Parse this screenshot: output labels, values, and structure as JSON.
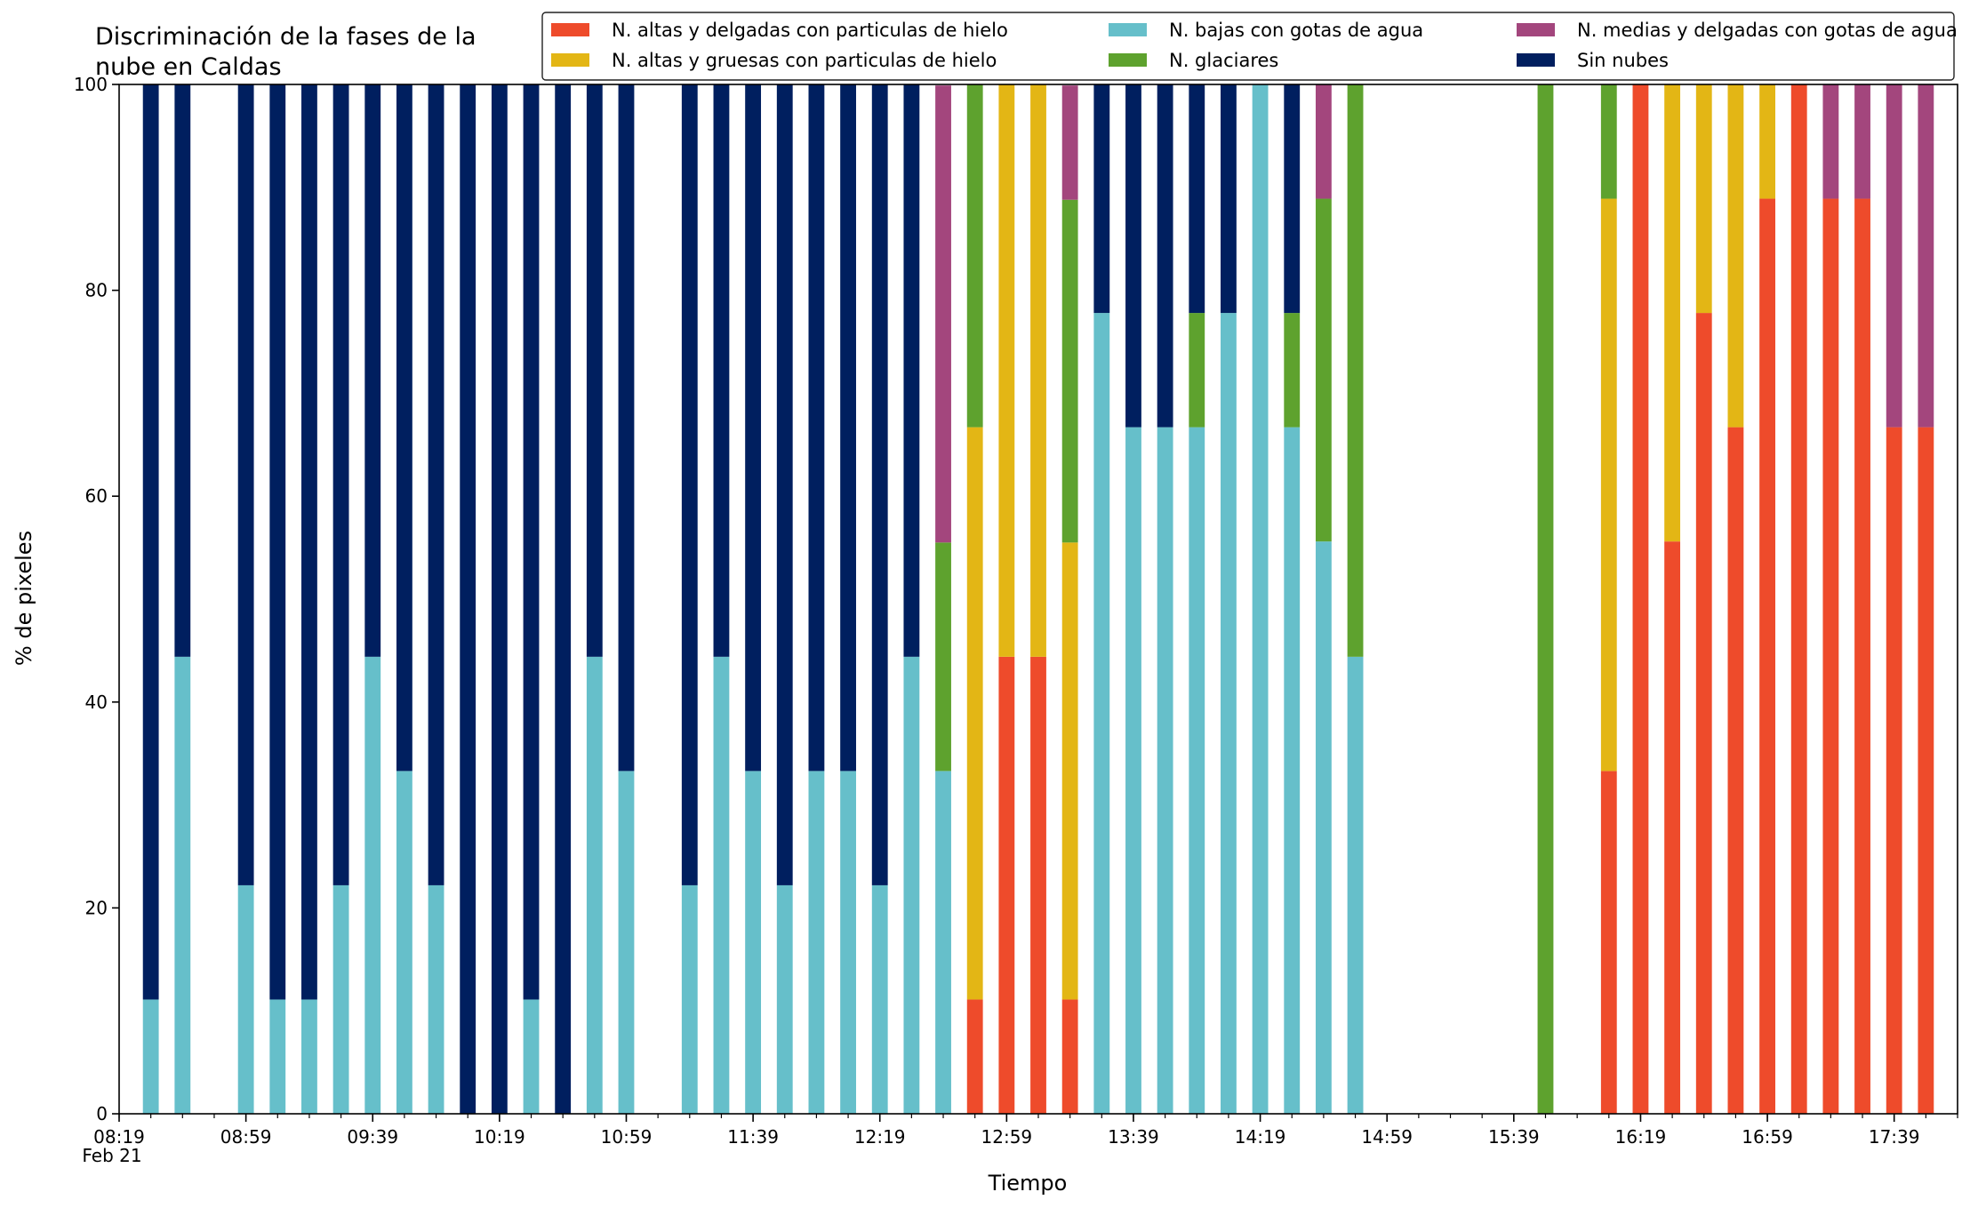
{
  "title_lines": [
    "Discriminación de la fases de la",
    "nube en Caldas"
  ],
  "chart_data": {
    "type": "bar",
    "stacked": true,
    "xlabel": "Tiempo",
    "ylabel": "% de pixeles",
    "ylim": [
      0,
      100
    ],
    "yticks": [
      0,
      20,
      40,
      60,
      80,
      100
    ],
    "x_range": [
      "08:19",
      "17:59"
    ],
    "x_step_minutes": 10,
    "xticks": [
      "08:19",
      "08:59",
      "09:39",
      "10:19",
      "10:59",
      "11:39",
      "12:19",
      "12:59",
      "13:39",
      "14:19",
      "14:59",
      "15:39",
      "16:19",
      "16:59",
      "17:39"
    ],
    "x_date_label": "Feb 21",
    "grid": false,
    "legend": {
      "placement": "top-right",
      "columns": 3
    },
    "legend_order": [
      "N. altas y delgadas con particulas de hielo",
      "N. altas y gruesas con particulas de hielo",
      "N. bajas con gotas de agua",
      "N. glaciares",
      "N. medias y delgadas con gotas de agua",
      "Sin nubes"
    ],
    "stack_order": [
      "N. altas y delgadas con particulas de hielo",
      "N. altas y gruesas con particulas de hielo",
      "N. bajas con gotas de agua",
      "N. glaciares",
      "N. medias y delgadas con gotas de agua",
      "Sin nubes"
    ],
    "series_colors": {
      "N. altas y delgadas con particulas de hielo": "#ee4b2b",
      "N. altas y gruesas con particulas de hielo": "#e3b615",
      "N. bajas con gotas de agua": "#66bfca",
      "N. glaciares": "#5ea22e",
      "N. medias y delgadas con gotas de agua": "#a3467d",
      "Sin nubes": "#001f5f"
    },
    "bars": [
      {
        "time": "08:29",
        "values": [
          0,
          0,
          11.1,
          0,
          0,
          88.9
        ]
      },
      {
        "time": "08:39",
        "values": [
          0,
          0,
          44.4,
          0,
          0,
          55.6
        ]
      },
      {
        "time": "08:59",
        "values": [
          0,
          0,
          22.2,
          0,
          0,
          77.8
        ]
      },
      {
        "time": "09:09",
        "values": [
          0,
          0,
          11.1,
          0,
          0,
          88.9
        ]
      },
      {
        "time": "09:19",
        "values": [
          0,
          0,
          11.1,
          0,
          0,
          88.9
        ]
      },
      {
        "time": "09:29",
        "values": [
          0,
          0,
          22.2,
          0,
          0,
          77.8
        ]
      },
      {
        "time": "09:39",
        "values": [
          0,
          0,
          44.4,
          0,
          0,
          55.6
        ]
      },
      {
        "time": "09:49",
        "values": [
          0,
          0,
          33.3,
          0,
          0,
          66.7
        ]
      },
      {
        "time": "09:59",
        "values": [
          0,
          0,
          22.2,
          0,
          0,
          77.8
        ]
      },
      {
        "time": "10:09",
        "values": [
          0,
          0,
          0,
          0,
          0,
          100
        ]
      },
      {
        "time": "10:19",
        "values": [
          0,
          0,
          0,
          0,
          0,
          100
        ]
      },
      {
        "time": "10:29",
        "values": [
          0,
          0,
          11.1,
          0,
          0,
          88.9
        ]
      },
      {
        "time": "10:39",
        "values": [
          0,
          0,
          0,
          0,
          0,
          100
        ]
      },
      {
        "time": "10:49",
        "values": [
          0,
          0,
          44.4,
          0,
          0,
          55.6
        ]
      },
      {
        "time": "10:59",
        "values": [
          0,
          0,
          33.3,
          0,
          0,
          66.7
        ]
      },
      {
        "time": "11:19",
        "values": [
          0,
          0,
          22.2,
          0,
          0,
          77.8
        ]
      },
      {
        "time": "11:29",
        "values": [
          0,
          0,
          44.4,
          0,
          0,
          55.6
        ]
      },
      {
        "time": "11:39",
        "values": [
          0,
          0,
          33.3,
          0,
          0,
          66.7
        ]
      },
      {
        "time": "11:49",
        "values": [
          0,
          0,
          22.2,
          0,
          0,
          77.8
        ]
      },
      {
        "time": "11:59",
        "values": [
          0,
          0,
          33.3,
          0,
          0,
          66.7
        ]
      },
      {
        "time": "12:09",
        "values": [
          0,
          0,
          33.3,
          0,
          0,
          66.7
        ]
      },
      {
        "time": "12:19",
        "values": [
          0,
          0,
          22.2,
          0,
          0,
          77.8
        ]
      },
      {
        "time": "12:29",
        "values": [
          0,
          0,
          44.4,
          0,
          0,
          55.6
        ]
      },
      {
        "time": "12:39",
        "values": [
          0,
          0,
          33.3,
          22.2,
          44.4,
          0
        ]
      },
      {
        "time": "12:49",
        "values": [
          11.1,
          55.6,
          0,
          33.3,
          0,
          0
        ]
      },
      {
        "time": "12:59",
        "values": [
          44.4,
          55.6,
          0,
          0,
          0,
          0
        ]
      },
      {
        "time": "13:09",
        "values": [
          44.4,
          55.6,
          0,
          0,
          0,
          0
        ]
      },
      {
        "time": "13:19",
        "values": [
          11.1,
          44.4,
          0,
          33.3,
          11.1,
          0
        ]
      },
      {
        "time": "13:29",
        "values": [
          0,
          0,
          77.8,
          0,
          0,
          22.2
        ]
      },
      {
        "time": "13:39",
        "values": [
          0,
          0,
          66.7,
          0,
          0,
          33.3
        ]
      },
      {
        "time": "13:49",
        "values": [
          0,
          0,
          66.7,
          0,
          0,
          33.3
        ]
      },
      {
        "time": "13:59",
        "values": [
          0,
          0,
          66.7,
          11.1,
          0,
          22.2
        ]
      },
      {
        "time": "14:09",
        "values": [
          0,
          0,
          77.8,
          0,
          0,
          22.2
        ]
      },
      {
        "time": "14:19",
        "values": [
          0,
          0,
          100,
          0,
          0,
          0
        ]
      },
      {
        "time": "14:29",
        "values": [
          0,
          0,
          66.7,
          11.1,
          0,
          22.2
        ]
      },
      {
        "time": "14:39",
        "values": [
          0,
          0,
          55.6,
          33.3,
          11.1,
          0
        ]
      },
      {
        "time": "14:49",
        "values": [
          0,
          0,
          44.4,
          55.6,
          0,
          0
        ]
      },
      {
        "time": "15:49",
        "values": [
          0,
          0,
          0,
          100,
          0,
          0
        ]
      },
      {
        "time": "16:09",
        "values": [
          33.3,
          55.6,
          0,
          11.1,
          0,
          0
        ]
      },
      {
        "time": "16:19",
        "values": [
          100,
          0,
          0,
          0,
          0,
          0
        ]
      },
      {
        "time": "16:29",
        "values": [
          55.6,
          44.4,
          0,
          0,
          0,
          0
        ]
      },
      {
        "time": "16:39",
        "values": [
          77.8,
          22.2,
          0,
          0,
          0,
          0
        ]
      },
      {
        "time": "16:49",
        "values": [
          66.7,
          33.3,
          0,
          0,
          0,
          0
        ]
      },
      {
        "time": "16:59",
        "values": [
          88.9,
          11.1,
          0,
          0,
          0,
          0
        ]
      },
      {
        "time": "17:09",
        "values": [
          100,
          0,
          0,
          0,
          0,
          0
        ]
      },
      {
        "time": "17:19",
        "values": [
          88.9,
          0,
          0,
          0,
          11.1,
          0
        ]
      },
      {
        "time": "17:29",
        "values": [
          88.9,
          0,
          0,
          0,
          11.1,
          0
        ]
      },
      {
        "time": "17:39",
        "values": [
          66.7,
          0,
          0,
          0,
          33.3,
          0
        ]
      },
      {
        "time": "17:49",
        "values": [
          66.7,
          0,
          0,
          0,
          33.3,
          0
        ]
      }
    ]
  }
}
